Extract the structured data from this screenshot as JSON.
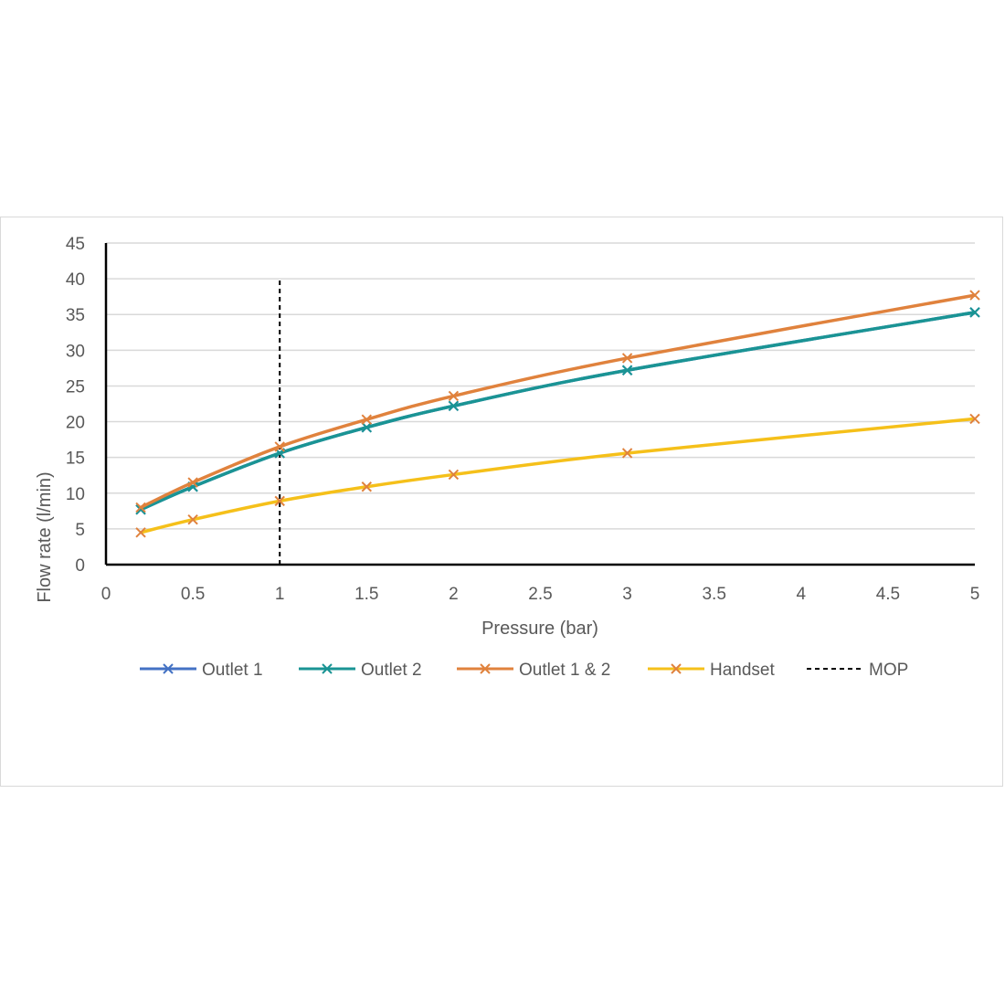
{
  "chart_data": {
    "type": "line",
    "xlabel": "Pressure (bar)",
    "ylabel": "Flow rate (l/min)",
    "xlim": [
      0,
      5
    ],
    "ylim": [
      0,
      45
    ],
    "x_ticks": [
      "0",
      "0.5",
      "1",
      "1.5",
      "2",
      "2.5",
      "3",
      "3.5",
      "4",
      "4.5",
      "5"
    ],
    "y_ticks": [
      "0",
      "5",
      "10",
      "15",
      "20",
      "25",
      "30",
      "35",
      "40",
      "45"
    ],
    "grid": "horizontal",
    "legend_position": "bottom",
    "x": [
      0.2,
      0.5,
      1,
      1.5,
      2,
      3,
      5
    ],
    "series": [
      {
        "name": "Outlet 1",
        "color": "#4472c4",
        "marker_color": "#4472c4",
        "values": [
          7.7,
          10.9,
          15.6,
          19.2,
          22.2,
          27.2,
          35.3
        ]
      },
      {
        "name": "Outlet 2",
        "color": "#1a9494",
        "marker_color": "#1a9494",
        "values": [
          7.7,
          10.9,
          15.6,
          19.2,
          22.2,
          27.2,
          35.3
        ]
      },
      {
        "name": "Outlet 1 & 2",
        "color": "#e0823d",
        "marker_color": "#e0823d",
        "values": [
          8.0,
          11.5,
          16.5,
          20.3,
          23.6,
          28.9,
          37.7
        ]
      },
      {
        "name": "Handset",
        "color": "#f5c01a",
        "marker_color": "#e0823d",
        "values": [
          4.5,
          6.3,
          8.9,
          10.9,
          12.6,
          15.6,
          20.4
        ]
      }
    ],
    "reference_lines": [
      {
        "name": "MOP",
        "color": "#000000",
        "style": "dashed",
        "x": 1,
        "y_range": [
          0,
          40
        ]
      }
    ]
  }
}
